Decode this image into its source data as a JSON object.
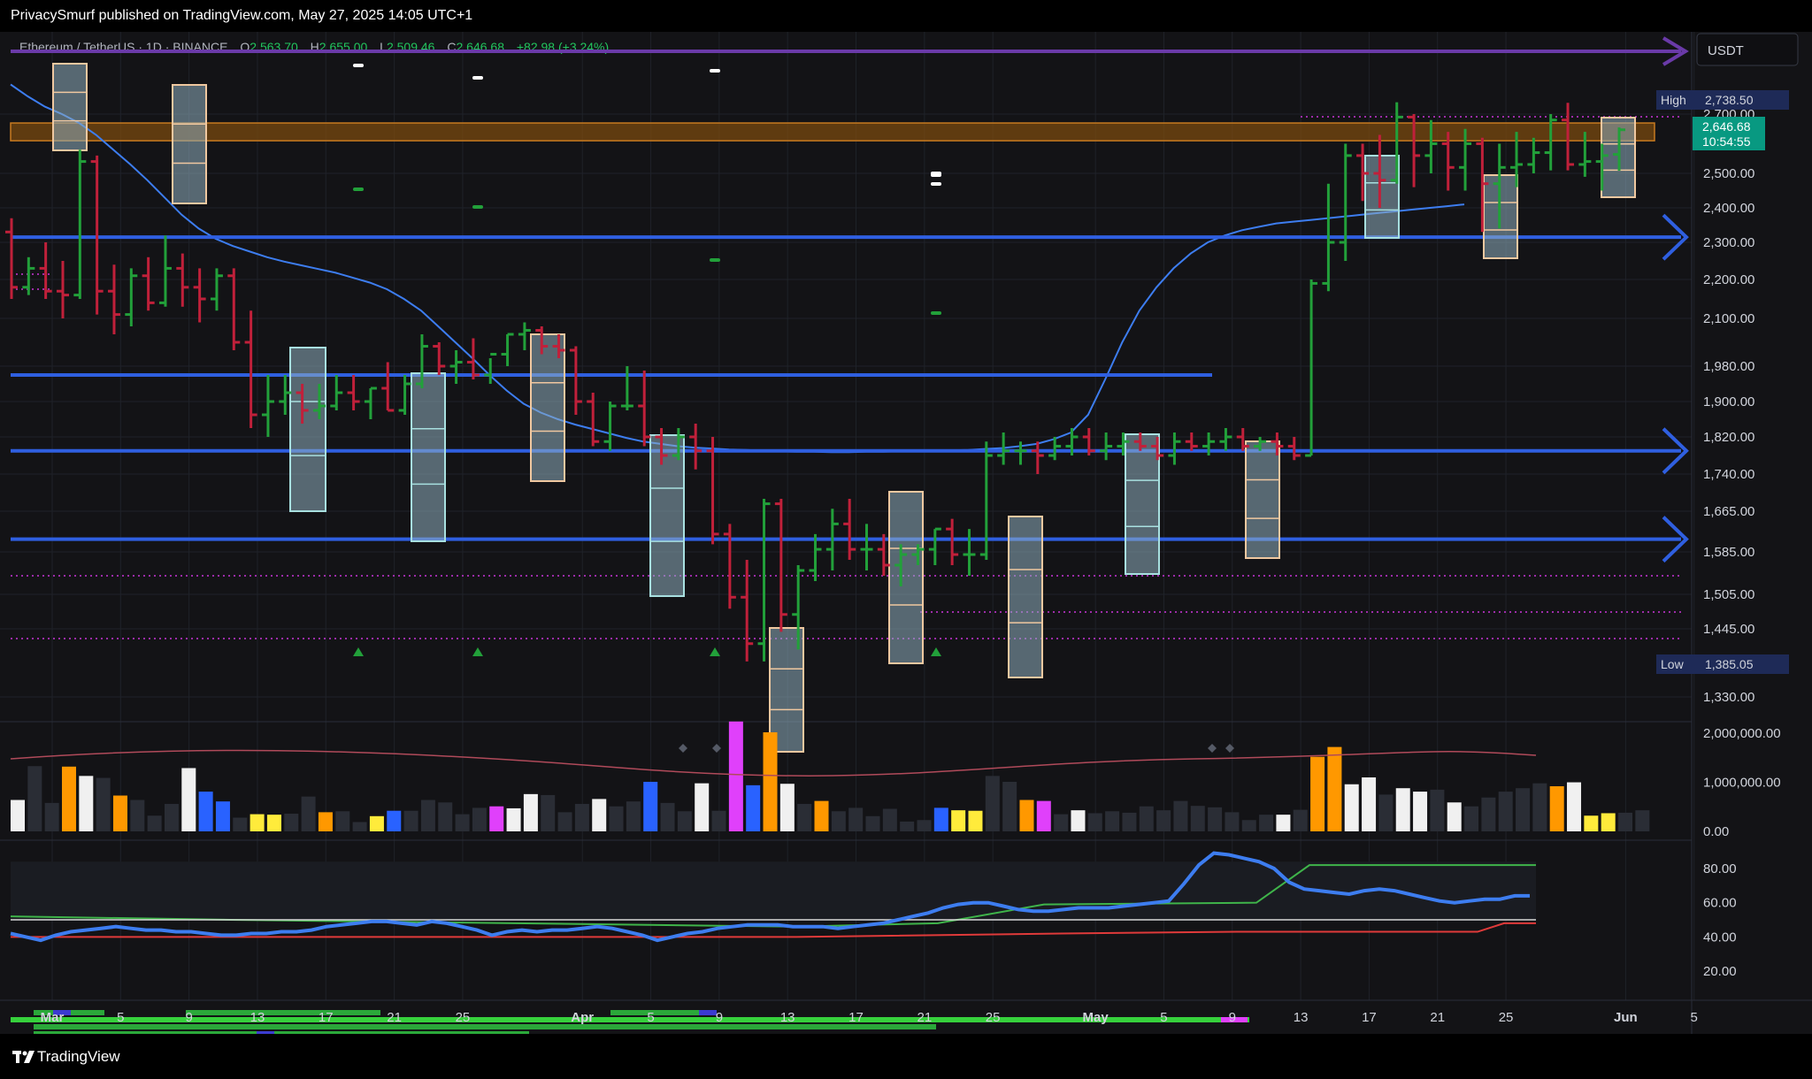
{
  "header": {
    "publish_line": "PrivacySmurf published on TradingView.com, May 27, 2025 14:05 UTC+1"
  },
  "symbol_line": {
    "symbol": "Ethereum / TetherUS · 1D · BINANCE",
    "o_label": "O",
    "o_value": "2,563.70",
    "h_label": "H",
    "h_value": "2,655.00",
    "l_label": "L",
    "l_value": "2,509.46",
    "c_label": "C",
    "c_value": "2,646.68",
    "change": "+82.98 (+3.24%)"
  },
  "currency_box": "USDT",
  "price_badges": {
    "high_label": "High",
    "high_value": "2,738.50",
    "last_value": "2,646.68",
    "countdown": "10:54:55",
    "low_label": "Low",
    "low_value": "1,385.05"
  },
  "footer": {
    "brand": "TradingView"
  },
  "colors": {
    "bull": "#22a03a",
    "bear": "#c0203a",
    "level_line": "#2f5fe0",
    "ma_line": "#3d7df0",
    "purple_line": "#6a3aa8",
    "orange_zone": "#c77a20",
    "volume_orange": "#ff9800",
    "volume_magenta": "#e040fb",
    "volume_blue": "#2962ff",
    "volume_yellow": "#ffeb3b",
    "last_badge": "#089981"
  },
  "chart_data": [
    {
      "type": "candlestick",
      "pair": "ETH/USDT",
      "interval": "1D",
      "x_tick_labels": [
        "Mar",
        "5",
        "9",
        "13",
        "17",
        "21",
        "25",
        "Apr",
        "5",
        "9",
        "13",
        "17",
        "21",
        "25",
        "May",
        "5",
        "9",
        "13",
        "17",
        "21",
        "25",
        "Jun",
        "5"
      ],
      "y_tick_labels": [
        "2,700.00",
        "2,500.00",
        "2,400.00",
        "2,300.00",
        "2,200.00",
        "2,100.00",
        "1,980.00",
        "1,900.00",
        "1,820.00",
        "1,740.00",
        "1,665.00",
        "1,585.00",
        "1,505.00",
        "1,445.00",
        "1,330.00"
      ],
      "y_ticks": [
        2700,
        2500,
        2400,
        2300,
        2200,
        2100,
        1980,
        1900,
        1820,
        1740,
        1665,
        1585,
        1505,
        1445,
        1330
      ],
      "horizontal_levels": [
        2315,
        1960,
        1790,
        1610
      ],
      "resistance_zone": [
        2610,
        2670
      ],
      "ma_series": [
        2800,
        2760,
        2725,
        2700,
        2670,
        2630,
        2580,
        2530,
        2480,
        2430,
        2380,
        2340,
        2310,
        2290,
        2275,
        2260,
        2248,
        2238,
        2228,
        2218,
        2205,
        2192,
        2175,
        2150,
        2120,
        2080,
        2040,
        2000,
        1960,
        1925,
        1895,
        1875,
        1860,
        1848,
        1838,
        1828,
        1818,
        1810,
        1805,
        1800,
        1797,
        1795,
        1793,
        1792,
        1790,
        1789,
        1788,
        1788,
        1787,
        1787,
        1788,
        1788,
        1789,
        1790,
        1790,
        1791,
        1792,
        1794,
        1796,
        1800,
        1805,
        1815,
        1830,
        1870,
        1950,
        2040,
        2120,
        2180,
        2230,
        2270,
        2300,
        2320,
        2335,
        2345,
        2355,
        2360,
        2365,
        2370,
        2375,
        2380,
        2385,
        2390,
        2395,
        2400,
        2405,
        2410
      ],
      "candles": [
        [
          2330,
          2370,
          2150,
          2180
        ],
        [
          2180,
          2260,
          2160,
          2230
        ],
        [
          2230,
          2300,
          2150,
          2170
        ],
        [
          2170,
          2250,
          2100,
          2160
        ],
        [
          2160,
          2580,
          2150,
          2540
        ],
        [
          2540,
          2560,
          2110,
          2170
        ],
        [
          2170,
          2240,
          2060,
          2110
        ],
        [
          2110,
          2230,
          2080,
          2210
        ],
        [
          2210,
          2260,
          2120,
          2140
        ],
        [
          2140,
          2320,
          2130,
          2230
        ],
        [
          2230,
          2270,
          2130,
          2180
        ],
        [
          2180,
          2230,
          2090,
          2150
        ],
        [
          2150,
          2230,
          2120,
          2210
        ],
        [
          2210,
          2230,
          2020,
          2040
        ],
        [
          2040,
          2120,
          1840,
          1870
        ],
        [
          1870,
          1960,
          1820,
          1900
        ],
        [
          1900,
          1960,
          1870,
          1920
        ],
        [
          1920,
          1940,
          1850,
          1880
        ],
        [
          1880,
          1940,
          1860,
          1890
        ],
        [
          1890,
          1960,
          1880,
          1920
        ],
        [
          1920,
          1960,
          1880,
          1900
        ],
        [
          1900,
          1930,
          1860,
          1930
        ],
        [
          1930,
          1990,
          1880,
          1880
        ],
        [
          1880,
          1960,
          1870,
          1940
        ],
        [
          1940,
          2060,
          1930,
          2030
        ],
        [
          2030,
          2040,
          1960,
          1980
        ],
        [
          1980,
          2020,
          1940,
          1990
        ],
        [
          1990,
          2050,
          1950,
          1960
        ],
        [
          1960,
          2000,
          1940,
          2010
        ],
        [
          2010,
          2060,
          1980,
          2060
        ],
        [
          2060,
          2090,
          2020,
          2070
        ],
        [
          2070,
          2080,
          2010,
          2030
        ],
        [
          2030,
          2060,
          2000,
          2020
        ],
        [
          2020,
          2030,
          1870,
          1900
        ],
        [
          1900,
          1920,
          1800,
          1810
        ],
        [
          1810,
          1900,
          1790,
          1890
        ],
        [
          1890,
          1980,
          1880,
          1890
        ],
        [
          1890,
          1970,
          1800,
          1820
        ],
        [
          1820,
          1840,
          1760,
          1780
        ],
        [
          1780,
          1840,
          1770,
          1820
        ],
        [
          1820,
          1850,
          1750,
          1790
        ],
        [
          1790,
          1820,
          1600,
          1620
        ],
        [
          1620,
          1640,
          1480,
          1500
        ],
        [
          1500,
          1570,
          1390,
          1420
        ],
        [
          1420,
          1690,
          1390,
          1680
        ],
        [
          1680,
          1690,
          1440,
          1470
        ],
        [
          1470,
          1560,
          1410,
          1550
        ],
        [
          1550,
          1620,
          1530,
          1590
        ],
        [
          1590,
          1670,
          1550,
          1640
        ],
        [
          1640,
          1690,
          1570,
          1590
        ],
        [
          1590,
          1640,
          1550,
          1590
        ],
        [
          1590,
          1620,
          1540,
          1560
        ],
        [
          1560,
          1600,
          1520,
          1580
        ],
        [
          1580,
          1600,
          1560,
          1590
        ],
        [
          1590,
          1630,
          1560,
          1630
        ],
        [
          1630,
          1650,
          1560,
          1580
        ],
        [
          1580,
          1630,
          1540,
          1580
        ],
        [
          1580,
          1810,
          1570,
          1780
        ],
        [
          1780,
          1830,
          1760,
          1790
        ],
        [
          1790,
          1810,
          1760,
          1790
        ],
        [
          1790,
          1810,
          1740,
          1780
        ],
        [
          1780,
          1820,
          1770,
          1800
        ],
        [
          1800,
          1840,
          1780,
          1820
        ],
        [
          1820,
          1840,
          1780,
          1790
        ],
        [
          1790,
          1830,
          1770,
          1800
        ],
        [
          1800,
          1830,
          1780,
          1810
        ],
        [
          1810,
          1830,
          1790,
          1800
        ],
        [
          1800,
          1820,
          1770,
          1780
        ],
        [
          1780,
          1830,
          1760,
          1810
        ],
        [
          1810,
          1830,
          1790,
          1800
        ],
        [
          1800,
          1830,
          1780,
          1810
        ],
        [
          1810,
          1840,
          1790,
          1820
        ],
        [
          1820,
          1840,
          1790,
          1800
        ],
        [
          1800,
          1820,
          1790,
          1810
        ],
        [
          1810,
          1830,
          1780,
          1800
        ],
        [
          1800,
          1820,
          1770,
          1780
        ],
        [
          1780,
          2200,
          1780,
          2190
        ],
        [
          2190,
          2470,
          2170,
          2300
        ],
        [
          2300,
          2600,
          2250,
          2560
        ],
        [
          2560,
          2600,
          2420,
          2500
        ],
        [
          2500,
          2630,
          2400,
          2480
        ],
        [
          2480,
          2740,
          2470,
          2690
        ],
        [
          2690,
          2700,
          2460,
          2560
        ],
        [
          2560,
          2680,
          2500,
          2600
        ],
        [
          2600,
          2640,
          2450,
          2520
        ],
        [
          2520,
          2650,
          2450,
          2600
        ],
        [
          2600,
          2620,
          2330,
          2470
        ],
        [
          2470,
          2600,
          2340,
          2520
        ],
        [
          2520,
          2640,
          2460,
          2530
        ],
        [
          2530,
          2620,
          2500,
          2570
        ],
        [
          2570,
          2700,
          2510,
          2680
        ],
        [
          2680,
          2738,
          2510,
          2530
        ],
        [
          2530,
          2640,
          2490,
          2540
        ],
        [
          2540,
          2600,
          2450,
          2560
        ],
        [
          2564,
          2655,
          2509,
          2647
        ]
      ]
    },
    {
      "type": "bar",
      "name": "volume",
      "y_tick_labels": [
        "2,000,000.00",
        "1,000,000.00",
        "0.00"
      ],
      "y_ticks": [
        2000000,
        1000000,
        0
      ],
      "values": [
        640000,
        1330000,
        580000,
        1320000,
        1130000,
        1090000,
        730000,
        640000,
        320000,
        560000,
        1290000,
        810000,
        610000,
        280000,
        350000,
        340000,
        360000,
        710000,
        390000,
        410000,
        190000,
        310000,
        420000,
        420000,
        640000,
        590000,
        350000,
        480000,
        510000,
        470000,
        760000,
        740000,
        390000,
        560000,
        660000,
        510000,
        610000,
        1010000,
        580000,
        410000,
        980000,
        420000,
        2240000,
        940000,
        2020000,
        970000,
        560000,
        620000,
        410000,
        480000,
        310000,
        460000,
        200000,
        230000,
        480000,
        430000,
        420000,
        1130000,
        1010000,
        640000,
        620000,
        350000,
        430000,
        370000,
        410000,
        380000,
        510000,
        430000,
        620000,
        520000,
        490000,
        390000,
        230000,
        340000,
        340000,
        440000,
        1520000,
        1720000,
        960000,
        1100000,
        750000,
        880000,
        810000,
        850000,
        590000,
        510000,
        690000,
        810000,
        880000,
        980000,
        920000,
        1000000,
        320000,
        370000,
        380000,
        430000
      ],
      "bar_colors": [
        "white",
        "gray",
        "gray",
        "orange",
        "white",
        "gray",
        "orange",
        "gray",
        "gray",
        "gray",
        "white",
        "blue",
        "blue",
        "gray",
        "yellow",
        "yellow",
        "gray",
        "gray",
        "orange",
        "gray",
        "gray",
        "yellow",
        "blue",
        "gray",
        "gray",
        "gray",
        "gray",
        "gray",
        "magenta",
        "white",
        "white",
        "gray",
        "gray",
        "gray",
        "white",
        "gray",
        "gray",
        "blue",
        "gray",
        "gray",
        "white",
        "gray",
        "magenta",
        "blue",
        "orange",
        "white",
        "gray",
        "orange",
        "gray",
        "gray",
        "gray",
        "gray",
        "gray",
        "gray",
        "blue",
        "yellow",
        "yellow",
        "gray",
        "gray",
        "orange",
        "magenta",
        "gray",
        "white",
        "gray",
        "gray",
        "gray",
        "gray",
        "gray",
        "gray",
        "gray",
        "gray",
        "gray",
        "gray",
        "gray",
        "white",
        "gray",
        "orange",
        "orange",
        "white",
        "white",
        "gray",
        "white",
        "white",
        "gray",
        "white",
        "gray",
        "gray",
        "gray",
        "gray",
        "gray",
        "orange",
        "white",
        "yellow",
        "yellow",
        "gray",
        "gray"
      ]
    },
    {
      "type": "line",
      "name": "oscillator",
      "y_tick_labels": [
        "80.00",
        "60.00",
        "40.00",
        "20.00"
      ],
      "y_ticks": [
        80,
        60,
        40,
        20
      ],
      "ylim": [
        20,
        92
      ],
      "reference_level": 50,
      "series": [
        {
          "values": [
            42,
            40,
            38,
            41,
            43,
            44,
            45,
            46,
            45,
            44,
            44,
            43,
            43,
            42,
            41,
            41,
            42,
            42,
            43,
            43,
            44,
            46,
            47,
            48,
            49,
            49,
            48,
            47,
            49,
            48,
            46,
            44,
            41,
            43,
            44,
            43,
            44,
            44,
            45,
            46,
            45,
            43,
            41,
            38,
            40,
            42,
            43,
            45,
            46,
            47,
            47,
            47,
            46,
            46,
            46,
            45,
            46,
            47,
            48,
            50,
            52,
            54,
            57,
            59,
            60,
            60,
            58,
            56,
            55,
            55,
            56,
            57,
            57,
            57,
            58,
            59,
            60,
            61,
            71,
            82,
            89,
            88,
            86,
            84,
            80,
            72,
            68,
            67,
            66,
            65,
            67,
            68,
            67,
            65,
            63,
            61,
            60,
            61,
            62,
            62,
            64,
            64
          ]
        }
      ]
    }
  ]
}
